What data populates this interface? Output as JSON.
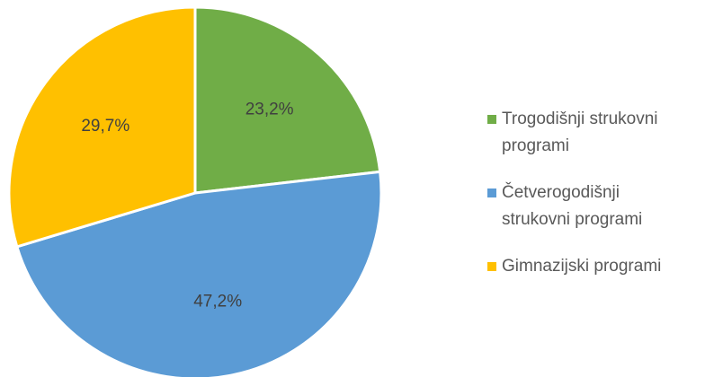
{
  "chart_data": {
    "type": "pie",
    "categories": [
      "Trogodišnji strukovni programi",
      "Četverogodišnji strukovni programi",
      "Gimnazijski programi"
    ],
    "values": [
      23.2,
      47.2,
      29.7
    ],
    "value_labels": [
      "23,2%",
      "47,2%",
      "29,7%"
    ],
    "colors": [
      "#70ad47",
      "#5b9bd5",
      "#ffc000"
    ],
    "legend": "right"
  }
}
